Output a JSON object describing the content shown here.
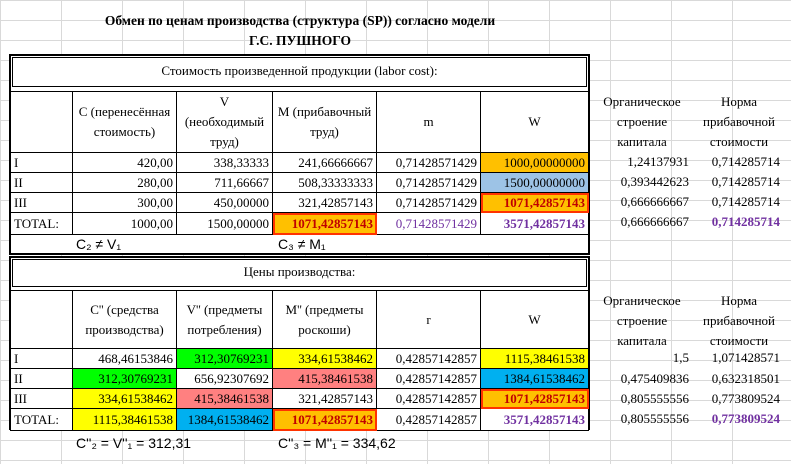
{
  "title": {
    "line1": "Обмен по ценам производства (структура (SP)) согласно модели",
    "line2": "Г.С. ПУШНОГО"
  },
  "section1": {
    "caption": "Стоимость произведенной продукции (labor cost):",
    "headers": [
      "",
      "C (перенесённая стоимость)",
      "V (необходимый труд)",
      "M (прибавочный труд)",
      "m",
      "W"
    ],
    "rows": [
      {
        "label": "I",
        "c": "420,00",
        "v": "338,33333",
        "m": "241,66666667",
        "mm": "0,71428571429",
        "w": "1000,00000000"
      },
      {
        "label": "II",
        "c": "280,00",
        "v": "711,66667",
        "m": "508,33333333",
        "mm": "0,71428571429",
        "w": "1500,00000000"
      },
      {
        "label": "III",
        "c": "300,00",
        "v": "450,00000",
        "m": "321,42857143",
        "mm": "0,71428571429",
        "w": "1071,42857143"
      },
      {
        "label": "TOTAL:",
        "c": "1000,00",
        "v": "1500,00000",
        "m": "1071,42857143",
        "mm": "0,71428571429",
        "w": "3571,42857143"
      }
    ],
    "note_left": "C₂ ≠ V₁",
    "note_right": "C₃ ≠ M₁",
    "side_headers": [
      "Органическое строение капитала",
      "Норма прибавочной стоимости"
    ],
    "side_rows": [
      [
        "1,24137931",
        "0,714285714"
      ],
      [
        "0,393442623",
        "0,714285714"
      ],
      [
        "0,666666667",
        "0,714285714"
      ],
      [
        "0,666666667",
        "0,714285714"
      ]
    ]
  },
  "section2": {
    "caption": "Цены производства:",
    "headers": [
      "",
      "C'' (средства производства)",
      "V'' (предметы потребления)",
      "M'' (предметы роскоши)",
      "r",
      "W"
    ],
    "rows": [
      {
        "label": "I",
        "c": "468,46153846",
        "v": "312,30769231",
        "m": "334,61538462",
        "mm": "0,42857142857",
        "w": "1115,38461538"
      },
      {
        "label": "II",
        "c": "312,30769231",
        "v": "656,92307692",
        "m": "415,38461538",
        "mm": "0,42857142857",
        "w": "1384,61538462"
      },
      {
        "label": "III",
        "c": "334,61538462",
        "v": "415,38461538",
        "m": "321,42857143",
        "mm": "0,42857142857",
        "w": "1071,42857143"
      },
      {
        "label": "TOTAL:",
        "c": "1115,38461538",
        "v": "1384,61538462",
        "m": "1071,42857143",
        "mm": "0,42857142857",
        "w": "3571,42857143"
      }
    ],
    "side_headers": [
      "Органическое строение капитала",
      "Норма прибавочной стоимости"
    ],
    "side_rows": [
      [
        "1,5",
        "1,071428571"
      ],
      [
        "0,475409836",
        "0,632318501"
      ],
      [
        "0,805555556",
        "0,773809524"
      ],
      [
        "0,805555556",
        "0,773809524"
      ]
    ],
    "formula_left": "C''₂ = V''₁ = 312,31",
    "formula_right": "C''₃ = M''₁ = 334,62"
  }
}
